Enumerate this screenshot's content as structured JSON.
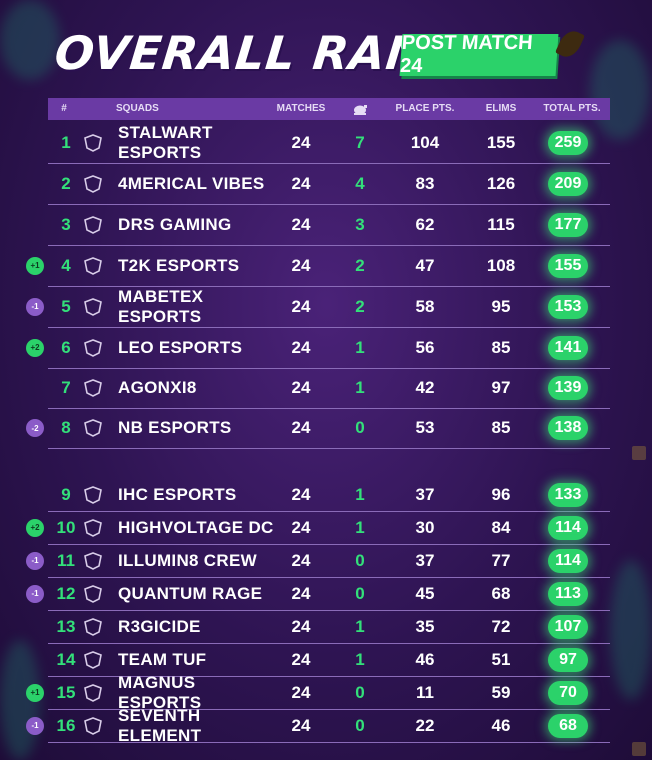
{
  "title": "OVERALL RANKING",
  "badge": "POST MATCH 24",
  "headers": {
    "rank": "#",
    "squads": "SQUADS",
    "matches": "MATCHES",
    "wins_icon": "chicken-dinner-icon",
    "place_pts": "PLACE PTS.",
    "elims": "ELIMS",
    "total_pts": "TOTAL PTS."
  },
  "colors": {
    "accent_green": "#2bd26a",
    "header_purple": "#6a3aa4",
    "background": "#2e1452"
  },
  "rows": [
    {
      "rank": "1",
      "team": "STALWART ESPORTS",
      "logo": "stalwart-logo",
      "matches": "24",
      "wins": "7",
      "place": "104",
      "elims": "155",
      "total": "259",
      "delta": ""
    },
    {
      "rank": "2",
      "team": "4MERICAL VIBES",
      "logo": "4merical-logo",
      "matches": "24",
      "wins": "4",
      "place": "83",
      "elims": "126",
      "total": "209",
      "delta": ""
    },
    {
      "rank": "3",
      "team": "DRS GAMING",
      "logo": "drs-logo",
      "matches": "24",
      "wins": "3",
      "place": "62",
      "elims": "115",
      "total": "177",
      "delta": ""
    },
    {
      "rank": "4",
      "team": "T2K ESPORTS",
      "logo": "t2k-logo",
      "matches": "24",
      "wins": "2",
      "place": "47",
      "elims": "108",
      "total": "155",
      "delta": "+1"
    },
    {
      "rank": "5",
      "team": "MABETEX ESPORTS",
      "logo": "mabetex-logo",
      "matches": "24",
      "wins": "2",
      "place": "58",
      "elims": "95",
      "total": "153",
      "delta": "-1"
    },
    {
      "rank": "6",
      "team": "LEO ESPORTS",
      "logo": "leo-logo",
      "matches": "24",
      "wins": "1",
      "place": "56",
      "elims": "85",
      "total": "141",
      "delta": "+2"
    },
    {
      "rank": "7",
      "team": "AGONXI8",
      "logo": "agonxi8-logo",
      "matches": "24",
      "wins": "1",
      "place": "42",
      "elims": "97",
      "total": "139",
      "delta": ""
    },
    {
      "rank": "8",
      "team": "NB ESPORTS",
      "logo": "nb-logo",
      "matches": "24",
      "wins": "0",
      "place": "53",
      "elims": "85",
      "total": "138",
      "delta": "-2"
    },
    {
      "rank": "9",
      "team": "IHC ESPORTS",
      "logo": "ihc-logo",
      "matches": "24",
      "wins": "1",
      "place": "37",
      "elims": "96",
      "total": "133",
      "delta": ""
    },
    {
      "rank": "10",
      "team": "HIGHVOLTAGE DC",
      "logo": "highvoltage-logo",
      "matches": "24",
      "wins": "1",
      "place": "30",
      "elims": "84",
      "total": "114",
      "delta": "+2"
    },
    {
      "rank": "11",
      "team": "ILLUMIN8 CREW",
      "logo": "illumin8-logo",
      "matches": "24",
      "wins": "0",
      "place": "37",
      "elims": "77",
      "total": "114",
      "delta": "-1"
    },
    {
      "rank": "12",
      "team": "QUANTUM RAGE",
      "logo": "quantum-logo",
      "matches": "24",
      "wins": "0",
      "place": "45",
      "elims": "68",
      "total": "113",
      "delta": "-1"
    },
    {
      "rank": "13",
      "team": "R3GICIDE",
      "logo": "r3gicide-logo",
      "matches": "24",
      "wins": "1",
      "place": "35",
      "elims": "72",
      "total": "107",
      "delta": ""
    },
    {
      "rank": "14",
      "team": "TEAM TUF",
      "logo": "tuf-logo",
      "matches": "24",
      "wins": "1",
      "place": "46",
      "elims": "51",
      "total": "97",
      "delta": ""
    },
    {
      "rank": "15",
      "team": "MAGNUS ESPORTS",
      "logo": "magnus-logo",
      "matches": "24",
      "wins": "0",
      "place": "11",
      "elims": "59",
      "total": "70",
      "delta": "+1"
    },
    {
      "rank": "16",
      "team": "SEVENTH ELEMENT",
      "logo": "seventh-logo",
      "matches": "24",
      "wins": "0",
      "place": "22",
      "elims": "46",
      "total": "68",
      "delta": "-1"
    }
  ]
}
